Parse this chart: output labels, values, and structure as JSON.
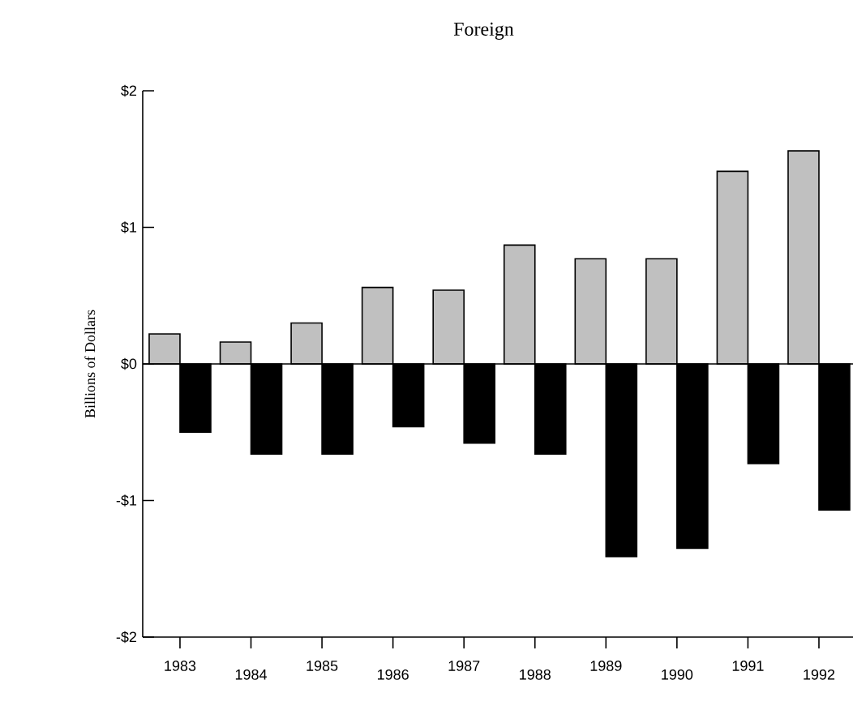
{
  "chart_data": {
    "type": "bar",
    "title": "Foreign",
    "ylabel": "Billions of Dollars",
    "categories": [
      "1983",
      "1984",
      "1985",
      "1986",
      "1987",
      "1988",
      "1989",
      "1990",
      "1991",
      "1992"
    ],
    "series": [
      {
        "color": "#c0c0c0",
        "values": [
          0.22,
          0.16,
          0.3,
          0.56,
          0.54,
          0.87,
          0.77,
          0.77,
          1.41,
          1.56
        ]
      },
      {
        "color": "#000000",
        "values": [
          -0.5,
          -0.66,
          -0.66,
          -0.46,
          -0.58,
          -0.66,
          -1.41,
          -1.35,
          -0.73,
          -1.07
        ]
      }
    ],
    "ylim": [
      -2,
      2
    ],
    "yticks": [
      {
        "value": -2,
        "label": "-$2"
      },
      {
        "value": -1,
        "label": "-$1"
      },
      {
        "value": 0,
        "label": "$0"
      },
      {
        "value": 1,
        "label": "$1"
      },
      {
        "value": 2,
        "label": "$2"
      }
    ],
    "ref_lines": [
      {
        "axis": "y",
        "value": 0
      }
    ]
  }
}
